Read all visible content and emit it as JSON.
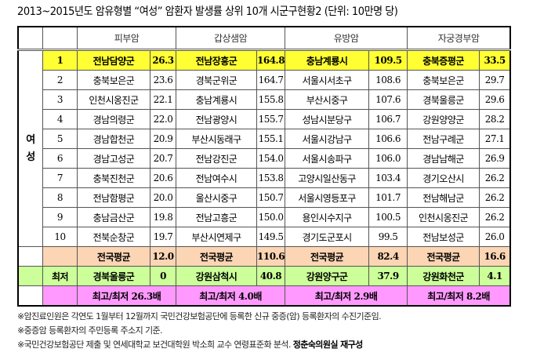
{
  "title": "2013~2015년도 암유형별 “여성” 암환자 발생률 상위 10개 시군구현황2 (단위: 10만명 당)",
  "headers": [
    "피부암",
    "갑상샘암",
    "유방암",
    "자궁경부암"
  ],
  "side_label": "여\n성",
  "rows": [
    [
      "1",
      "전남담양군",
      "26.3",
      "전남장흥군",
      "164.8",
      "충남계룡시",
      "109.5",
      "충북증평군",
      "33.5"
    ],
    [
      "2",
      "충북보은군",
      "23.6",
      "경북군위군",
      "164.7",
      "서울시서초구",
      "108.6",
      "충북보은군",
      "29.7"
    ],
    [
      "3",
      "인천시옹진군",
      "22.1",
      "충남계룡시",
      "155.8",
      "부산시중구",
      "107.6",
      "경북울릉군",
      "29.6"
    ],
    [
      "4",
      "경남의령군",
      "22.0",
      "전남광양시",
      "155.7",
      "성남시분당구",
      "106.7",
      "강원양양군",
      "28.2"
    ],
    [
      "5",
      "경남합천군",
      "20.9",
      "부산시동래구",
      "155.1",
      "서울시강남구",
      "106.6",
      "전남구례군",
      "27.1"
    ],
    [
      "6",
      "경남고성군",
      "20.7",
      "전남강진군",
      "154.0",
      "서울시송파구",
      "106.0",
      "경남남해군",
      "26.9"
    ],
    [
      "7",
      "충북진천군",
      "20.6",
      "전남여수시",
      "153.8",
      "고양시일산동구",
      "103.4",
      "경기오산시",
      "26.2"
    ],
    [
      "8",
      "전남함평군",
      "20.0",
      "울산시중구",
      "150.7",
      "서울시영등포구",
      "101.7",
      "전남해남군",
      "26.2"
    ],
    [
      "9",
      "충남금산군",
      "19.8",
      "전남고흥군",
      "150.0",
      "용인시수지구",
      "100.5",
      "인천시옹진군",
      "26.2"
    ],
    [
      "10",
      "전북순창군",
      "19.7",
      "부산시연제구",
      "149.5",
      "경기도군포시",
      "99.5",
      "전남보성군",
      "26.0"
    ]
  ],
  "avg": [
    "전국평균",
    "12.0",
    "전국평균",
    "110.6",
    "전국평균",
    "82.4",
    "전국평균",
    "16.6"
  ],
  "min_label": "최저",
  "min": [
    "경북울릉군",
    "0",
    "강원삼척시",
    "40.8",
    "강원양구군",
    "37.9",
    "강원화천군",
    "4.1"
  ],
  "ratio": [
    "최고/최저 26.3배",
    "최고/최저 4.0배",
    "최고/최저 2.9배",
    "최고/최저 8.2배"
  ],
  "notes": [
    "※암진료인원은 각연도 1월부터 12월까지 국민건강보험공단에 등록한 신규 중증(암) 등록환자의 수진기준임.",
    "※중증암 등록환자의 주민등록 주소지 기준.",
    "※국민건강보험공단 제출 및 연세대학교 보건대학원 박소희 교수 연령표준화 분석."
  ],
  "credit": "정춘숙의원실 재구성",
  "colors": {
    "top": "#ffff33",
    "avg": "#fcd5b4",
    "min": "#ccff99",
    "ratio": "#ff99ff"
  }
}
